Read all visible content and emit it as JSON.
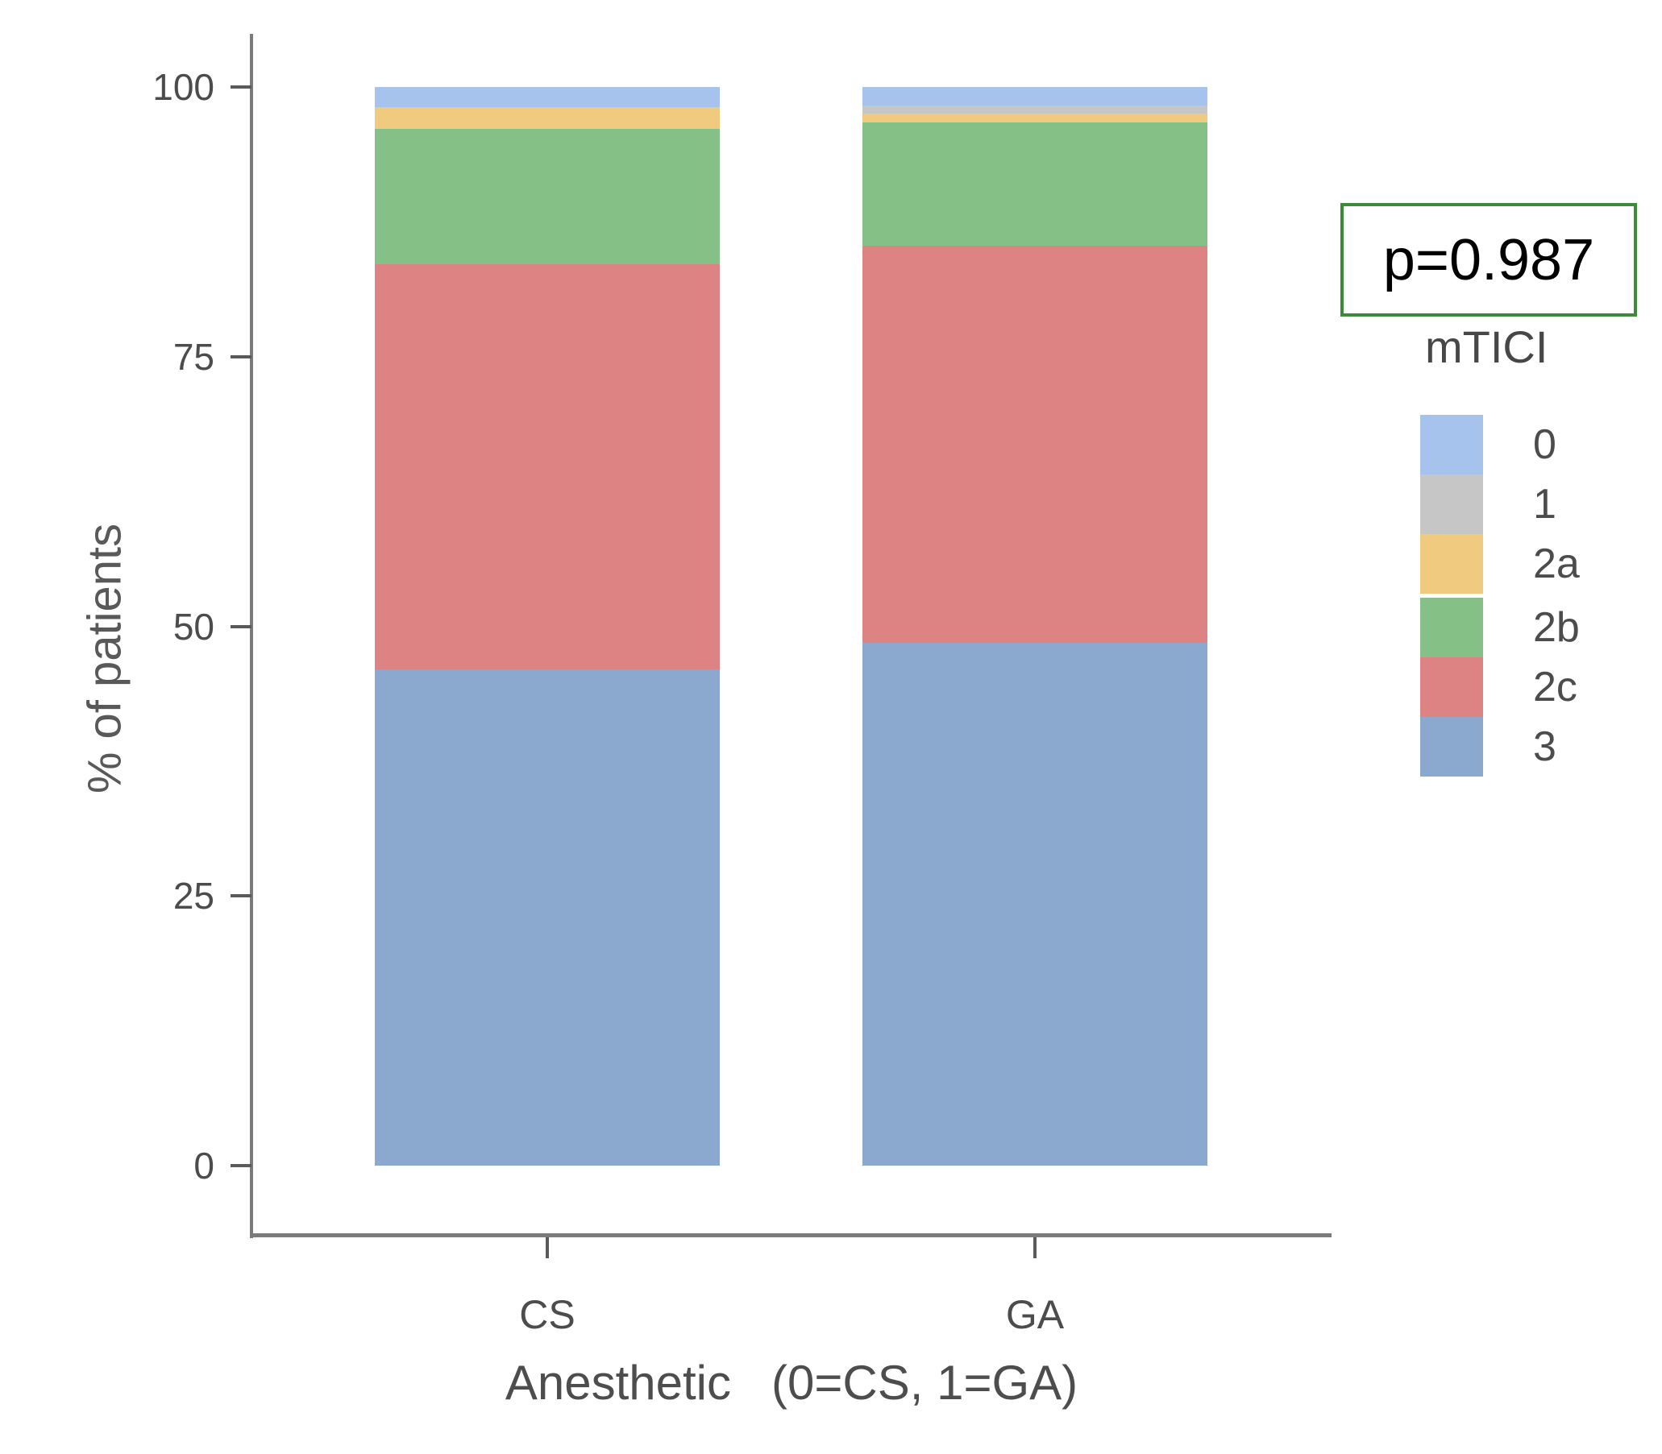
{
  "chart_data": {
    "type": "bar",
    "subtype": "stacked-percent",
    "title": "",
    "xlabel": "Anesthetic   (0=CS, 1=GA)",
    "ylabel": "% of patients",
    "ylim": [
      0,
      100
    ],
    "yticks": [
      0,
      25,
      50,
      75,
      100
    ],
    "categories": [
      "CS",
      "GA"
    ],
    "legend_title": "mTICI",
    "legend_position": "right",
    "grid": "off",
    "stack_order_bottom_to_top": [
      "3",
      "2c",
      "2b",
      "2a",
      "1",
      "0"
    ],
    "series": [
      {
        "name": "0",
        "color": "#a6c3ee",
        "values": [
          1.9,
          1.7
        ]
      },
      {
        "name": "1",
        "color": "#c6c6c6",
        "values": [
          0.0,
          0.8
        ]
      },
      {
        "name": "2a",
        "color": "#f0cb7f",
        "values": [
          2.0,
          0.8
        ]
      },
      {
        "name": "2b",
        "color": "#85c086",
        "values": [
          12.5,
          11.4
        ]
      },
      {
        "name": "2c",
        "color": "#de8383",
        "values": [
          37.6,
          36.8
        ]
      },
      {
        "name": "3",
        "color": "#8ba8ce",
        "values": [
          46.0,
          48.5
        ]
      }
    ],
    "annotation": {
      "text": "p=0.987",
      "border_color": "#3a8c3a"
    }
  }
}
